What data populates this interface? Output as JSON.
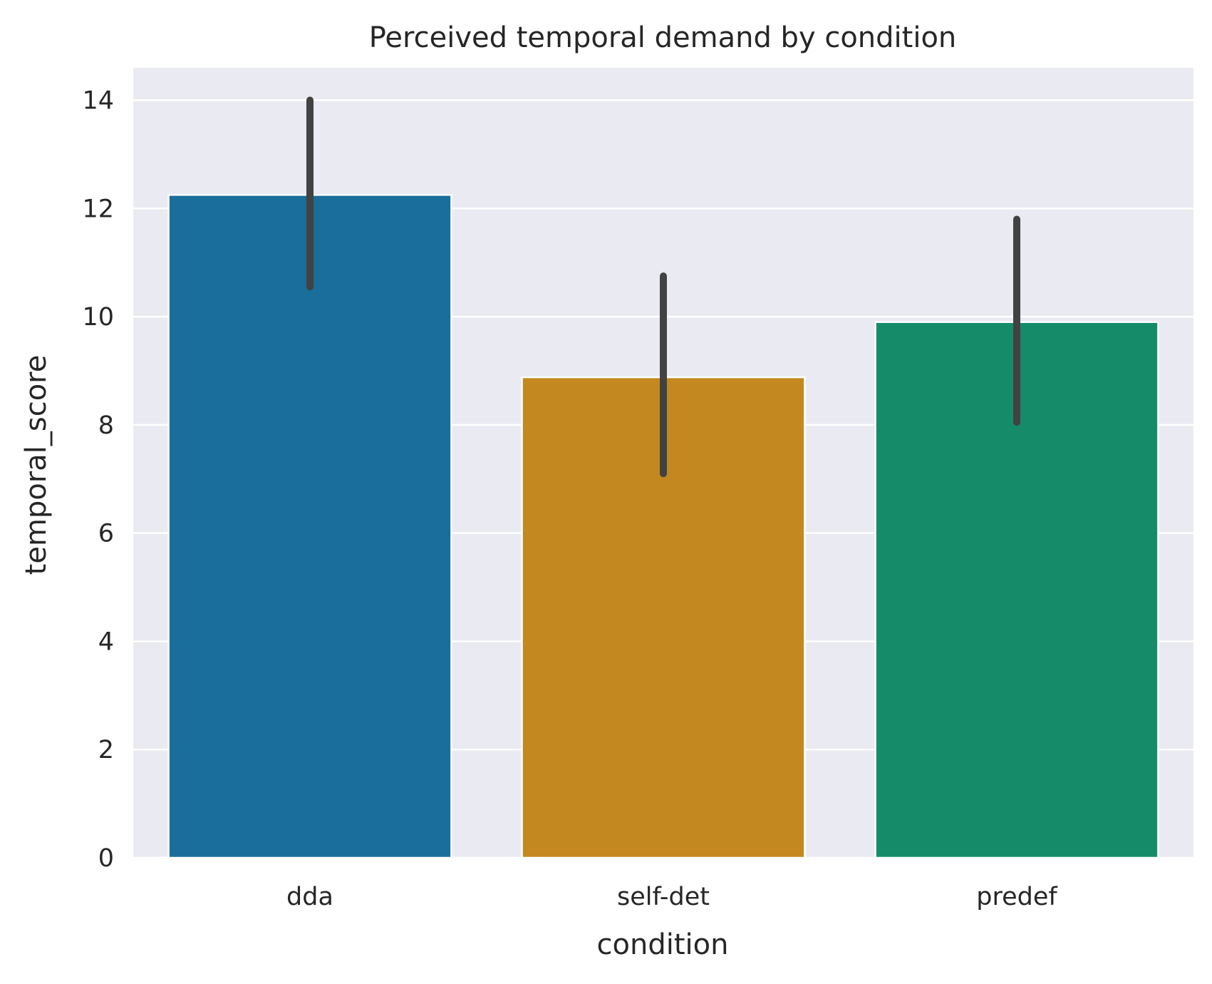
{
  "chart_data": {
    "type": "bar",
    "title": "Perceived temporal demand by condition",
    "xlabel": "condition",
    "ylabel": "temporal_score",
    "categories": [
      "dda",
      "self-det",
      "predef"
    ],
    "values": [
      12.25,
      8.88,
      9.9
    ],
    "error_bars": [
      {
        "low": 10.55,
        "high": 14.0
      },
      {
        "low": 7.1,
        "high": 10.75
      },
      {
        "low": 8.05,
        "high": 11.8
      }
    ],
    "colors": [
      "#1a6e9c",
      "#c38820",
      "#168b69"
    ],
    "ylim": [
      0,
      14.6
    ],
    "yticks": [
      0,
      2,
      4,
      6,
      8,
      10,
      12,
      14
    ],
    "grid": true,
    "legend": "none",
    "style": {
      "background": "#eaeaf2",
      "grid_color": "#ffffff",
      "errorbar_color": "#424242"
    }
  }
}
